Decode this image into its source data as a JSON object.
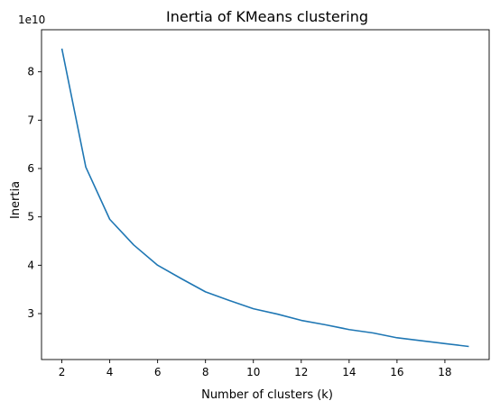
{
  "chart_data": {
    "type": "line",
    "title": "Inertia of KMeans clustering",
    "xlabel": "Number of clusters (k)",
    "ylabel": "Inertia",
    "y_offset_label": "1e10",
    "y_scale_factor": 10000000000,
    "xlim": [
      1.15,
      19.85
    ],
    "ylim": [
      2.05,
      8.87
    ],
    "grid": false,
    "legend": "none",
    "line_color": "#1f77b4",
    "x_ticks": [
      2,
      4,
      6,
      8,
      10,
      12,
      14,
      16,
      18
    ],
    "x_tick_labels": [
      "2",
      "4",
      "6",
      "8",
      "10",
      "12",
      "14",
      "16",
      "18"
    ],
    "y_ticks": [
      3,
      4,
      5,
      6,
      7,
      8
    ],
    "y_tick_labels": [
      "3",
      "4",
      "5",
      "6",
      "7",
      "8"
    ],
    "series": [
      {
        "x": [
          2,
          3,
          4,
          5,
          6,
          7,
          8,
          9,
          10,
          11,
          12,
          13,
          14,
          15,
          16,
          17,
          18,
          19
        ],
        "values": [
          8.48,
          6.03,
          4.95,
          4.42,
          4.0,
          3.72,
          3.45,
          3.27,
          3.1,
          2.99,
          2.86,
          2.77,
          2.67,
          2.6,
          2.5,
          2.44,
          2.38,
          2.32
        ]
      }
    ]
  }
}
